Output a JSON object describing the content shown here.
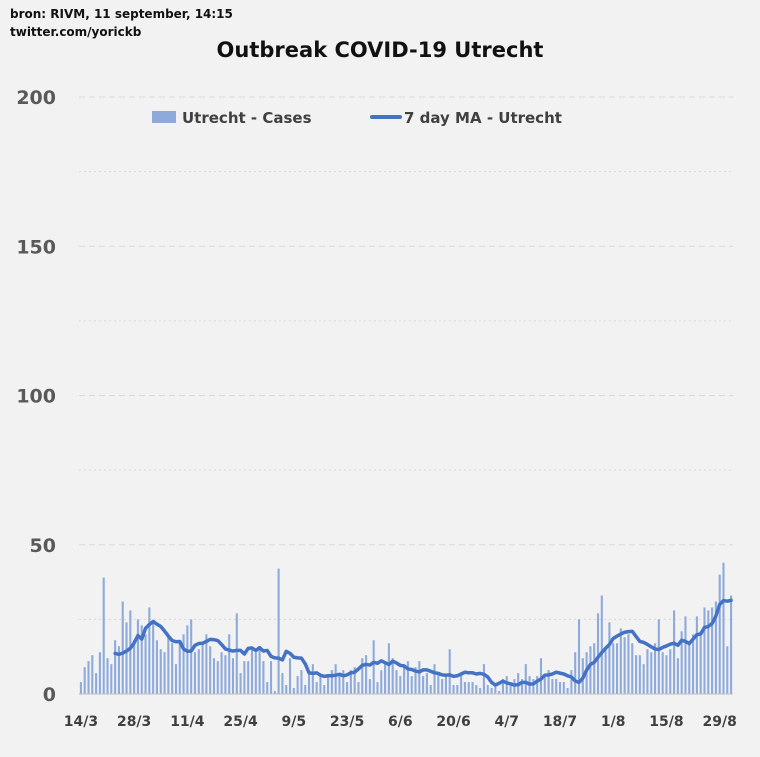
{
  "header": {
    "source": "bron: RIVM, 11 september, 14:15",
    "twitter": "twitter.com/yorickb"
  },
  "chart_data": {
    "type": "bar",
    "title": "Outbreak COVID-19 Utrecht",
    "ylim": [
      0,
      200
    ],
    "yticks": [
      0,
      50,
      100,
      150,
      200
    ],
    "xtick_labels": [
      "14/3",
      "28/3",
      "11/4",
      "25/4",
      "9/5",
      "23/5",
      "6/6",
      "20/6",
      "4/7",
      "18/7",
      "1/8",
      "15/8",
      "29/8"
    ],
    "xtick_step_days": 14,
    "grid": true,
    "legend_position": "top",
    "colors": {
      "bars": "#8eaadb",
      "line": "#4472c4",
      "grid": "#d9d9d9"
    },
    "series": [
      {
        "name": "Utrecht - Cases",
        "kind": "bar",
        "values": [
          4,
          9,
          11,
          13,
          7,
          14,
          39,
          12,
          10,
          18,
          16,
          31,
          24,
          28,
          18,
          25,
          23,
          20,
          29,
          24,
          18,
          15,
          14,
          20,
          17,
          10,
          17,
          20,
          23,
          25,
          14,
          15,
          17,
          20,
          16,
          12,
          11,
          14,
          13,
          20,
          12,
          27,
          7,
          11,
          11,
          15,
          14,
          16,
          11,
          4,
          11,
          1,
          42,
          7,
          3,
          12,
          2,
          6,
          8,
          3,
          7,
          10,
          4,
          6,
          3,
          6,
          8,
          10,
          7,
          8,
          4,
          8,
          9,
          4,
          12,
          13,
          5,
          18,
          4,
          8,
          11,
          17,
          12,
          8,
          6,
          10,
          11,
          6,
          9,
          11,
          6,
          7,
          3,
          10,
          7,
          5,
          6,
          15,
          3,
          3,
          7,
          4,
          4,
          4,
          3,
          2,
          10,
          3,
          2,
          3,
          1,
          5,
          6,
          3,
          5,
          7,
          5,
          10,
          6,
          5,
          6,
          12,
          6,
          8,
          5,
          5,
          4,
          4,
          2,
          8,
          14,
          25,
          12,
          14,
          16,
          17,
          27,
          33,
          16,
          24,
          17,
          17,
          22,
          19,
          20,
          17,
          13,
          13,
          10,
          15,
          14,
          17,
          25,
          14,
          13,
          15,
          28,
          12,
          21,
          26,
          17,
          20,
          26,
          21,
          29,
          28,
          29,
          31,
          40,
          44,
          16,
          33
        ]
      },
      {
        "name": "7 day MA - Utrecht",
        "kind": "line",
        "values": [
          13.6,
          13.3,
          13.7,
          14.4,
          15.3,
          17.1,
          19.6,
          18.4,
          22,
          23.3,
          24.3,
          23.4,
          22.6,
          21.1,
          19.4,
          17.9,
          17.5,
          17.6,
          15.1,
          14.3,
          14.4,
          16.3,
          16.9,
          17,
          17.6,
          18.3,
          18.2,
          17.9,
          16.6,
          15.1,
          14.7,
          14.4,
          14.6,
          14.6,
          13.4,
          15.3,
          15.4,
          14.6,
          15.5,
          14.4,
          14.6,
          12.6,
          12.1,
          12,
          11.4,
          14.3,
          13.6,
          12.3,
          12.1,
          12,
          10.1,
          7.1,
          6.9,
          7.1,
          6.3,
          5.9,
          6.1,
          6.1,
          6.3,
          6.6,
          6.1,
          6.4,
          7.1,
          7.3,
          8.4,
          9.6,
          9.9,
          9.7,
          10.6,
          10.3,
          11.1,
          10.5,
          9.9,
          11,
          10.4,
          9.6,
          9.4,
          8.4,
          8.2,
          7.7,
          7.4,
          8.1,
          8.1,
          7.6,
          7.1,
          6.9,
          6.4,
          6.3,
          6.4,
          5.9,
          6.1,
          6.7,
          7.3,
          7.1,
          7.1,
          6.7,
          6.9,
          6.6,
          5.7,
          3.9,
          3,
          3.6,
          4.3,
          3.7,
          3.4,
          3,
          3.1,
          3.9,
          3.9,
          3.3,
          3.4,
          4.3,
          5,
          6.3,
          6.4,
          6.7,
          7.3,
          7,
          6.7,
          6.1,
          5.7,
          4.4,
          3.9,
          5.3,
          8,
          9.9,
          10.6,
          12.3,
          13.9,
          15.3,
          16.6,
          18.6,
          19.4,
          20.1,
          20.7,
          20.9,
          21,
          19.3,
          17.6,
          17.3,
          16.6,
          15.8,
          15.1,
          14.9,
          15.6,
          16.1,
          16.7,
          17,
          16.3,
          18,
          17.6,
          16.9,
          18.4,
          19.9,
          20.1,
          22.3,
          22.6,
          23.6,
          26.1,
          30,
          31.3,
          31.1,
          31.4
        ]
      }
    ]
  }
}
